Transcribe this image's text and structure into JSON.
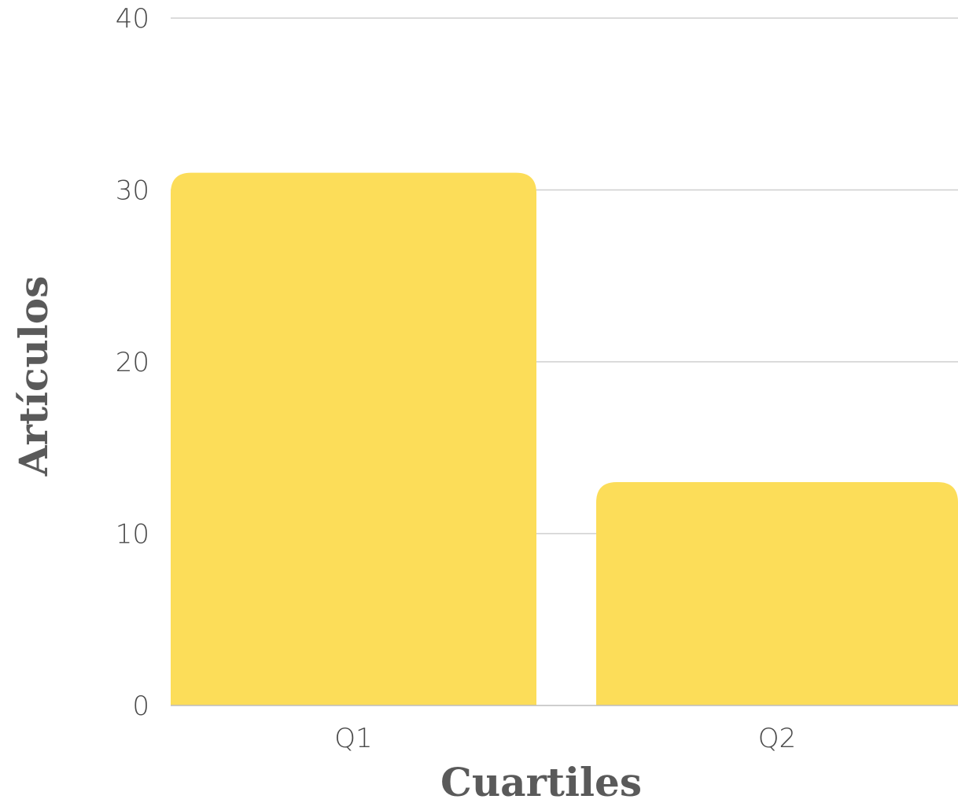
{
  "chart_data": {
    "type": "bar",
    "categories": [
      "Q1",
      "Q2"
    ],
    "values": [
      31,
      13
    ],
    "title": "",
    "xlabel": "Cuartiles",
    "ylabel": "Artículos",
    "ylim": [
      0,
      40
    ],
    "yticks": [
      0,
      10,
      20,
      30,
      40
    ],
    "grid": true,
    "bar_color": "#fcdd59",
    "grid_color": "#cfcfcf",
    "text_color": "#4a4a4a"
  }
}
